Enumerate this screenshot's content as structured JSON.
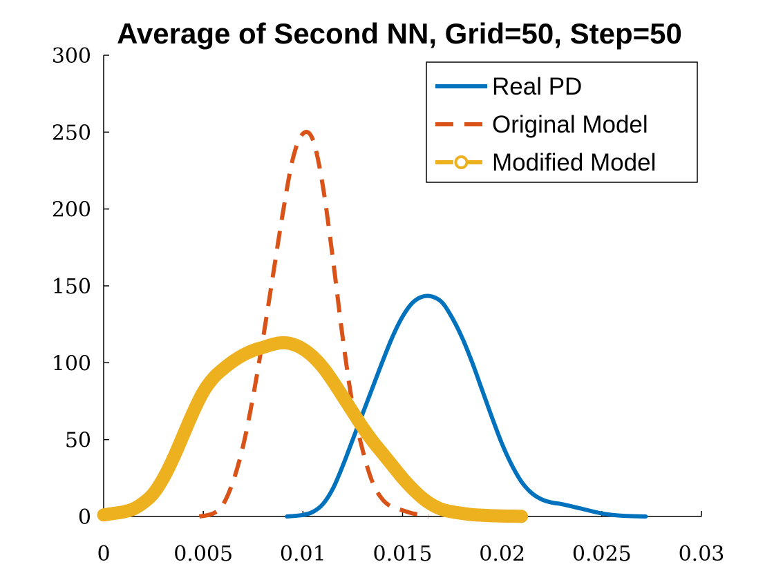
{
  "chart_data": {
    "type": "line",
    "title": "Average of Second NN, Grid=50, Step=50",
    "xlabel": "",
    "ylabel": "",
    "xlim": [
      0,
      0.03
    ],
    "ylim": [
      0,
      300
    ],
    "xticks": [
      0,
      0.005,
      0.01,
      0.015,
      0.02,
      0.025,
      0.03
    ],
    "yticks": [
      0,
      50,
      100,
      150,
      200,
      250,
      300
    ],
    "x_tick_labels": [
      "0",
      "0.005",
      "0.01",
      "0.015",
      "0.02",
      "0.025",
      "0.03"
    ],
    "y_tick_labels": [
      "0",
      "50",
      "100",
      "150",
      "200",
      "250",
      "300"
    ],
    "grid": false,
    "legend_position": "top-right",
    "series": [
      {
        "name": "Real PD",
        "color": "#0072BD",
        "style": "solid",
        "x": [
          0.0092,
          0.01,
          0.0105,
          0.011,
          0.0115,
          0.012,
          0.0125,
          0.013,
          0.0135,
          0.014,
          0.0145,
          0.015,
          0.0155,
          0.016,
          0.0165,
          0.017,
          0.0175,
          0.018,
          0.0185,
          0.019,
          0.0195,
          0.02,
          0.0205,
          0.021,
          0.0215,
          0.022,
          0.0225,
          0.023,
          0.024,
          0.025,
          0.026,
          0.0272
        ],
        "y": [
          0,
          1,
          3,
          8,
          18,
          33,
          50,
          67,
          84,
          101,
          117,
          130,
          139,
          143,
          143,
          139,
          129,
          116,
          100,
          82,
          64,
          47,
          33,
          22,
          15,
          11,
          9,
          8,
          5,
          2,
          0.5,
          0
        ]
      },
      {
        "name": "Original Model",
        "color": "#D95319",
        "style": "dashed",
        "x": [
          0.0048,
          0.0055,
          0.006,
          0.0065,
          0.007,
          0.0075,
          0.008,
          0.0085,
          0.009,
          0.0095,
          0.01,
          0.0105,
          0.011,
          0.0115,
          0.012,
          0.0125,
          0.013,
          0.0135,
          0.014,
          0.0145,
          0.015,
          0.0155,
          0.016,
          0.0163
        ],
        "y": [
          0,
          2,
          8,
          23,
          46,
          78,
          116,
          157,
          198,
          233,
          249,
          245,
          215,
          168,
          116,
          72,
          43,
          22,
          11,
          6,
          4,
          2,
          1,
          0
        ]
      },
      {
        "name": "Modified Model",
        "color": "#EDB120",
        "style": "dashed-circle",
        "x": [
          0.0,
          0.0005,
          0.001,
          0.0015,
          0.002,
          0.0025,
          0.003,
          0.0035,
          0.004,
          0.0045,
          0.005,
          0.0055,
          0.006,
          0.0065,
          0.007,
          0.0075,
          0.008,
          0.0085,
          0.009,
          0.0095,
          0.01,
          0.0105,
          0.011,
          0.0115,
          0.012,
          0.0125,
          0.013,
          0.0135,
          0.014,
          0.0145,
          0.015,
          0.0155,
          0.016,
          0.0165,
          0.017,
          0.0175,
          0.018,
          0.0185,
          0.019,
          0.0195,
          0.02,
          0.0205,
          0.021
        ],
        "y": [
          1,
          2,
          3,
          5,
          9,
          15,
          25,
          38,
          53,
          68,
          81,
          90,
          96,
          101,
          105,
          108,
          110,
          112,
          113,
          112,
          109,
          104,
          97,
          88,
          78,
          68,
          58,
          49,
          41,
          33,
          25,
          18,
          12,
          7.5,
          4.5,
          3,
          2,
          1.2,
          0.8,
          0.5,
          0.3,
          0.2,
          0.1
        ]
      }
    ]
  }
}
